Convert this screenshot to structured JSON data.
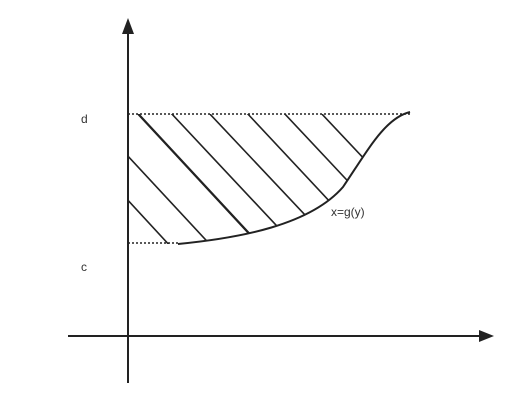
{
  "labels": {
    "d": "d",
    "c": "c",
    "curve": "x=g(y)"
  },
  "colors": {
    "ink": "#222222",
    "text": "#333333",
    "background": "#ffffff"
  }
}
